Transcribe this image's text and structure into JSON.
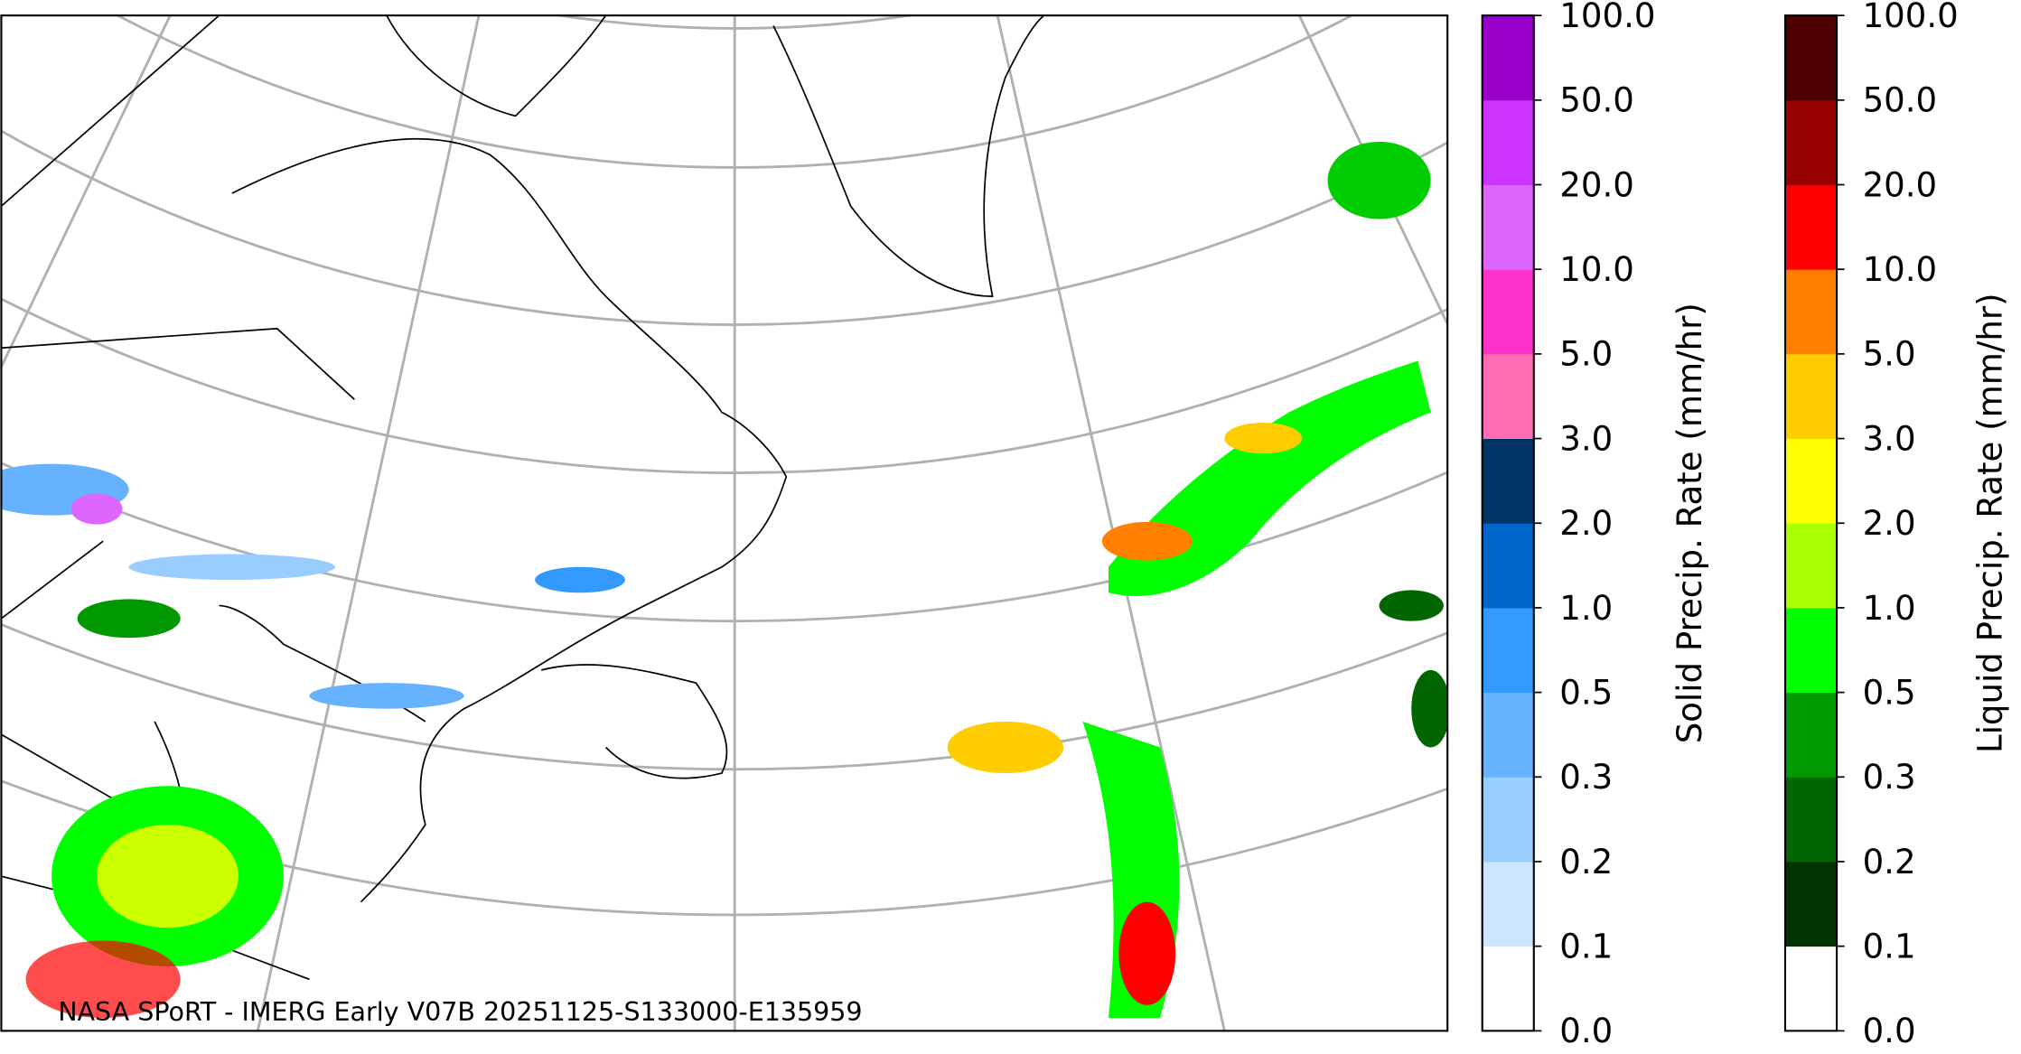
{
  "map": {
    "credit": "NASA SPoRT - IMERG Early V07B 20251125-S133000-E135959"
  },
  "colorbars": [
    {
      "label": "Solid Precip. Rate (mm/hr)",
      "ticks": [
        "0.0",
        "0.1",
        "0.2",
        "0.3",
        "0.5",
        "1.0",
        "2.0",
        "3.0",
        "5.0",
        "10.0",
        "20.0",
        "50.0",
        "100.0"
      ],
      "colors": [
        "#ffffff",
        "#cce5ff",
        "#99ccff",
        "#66b2ff",
        "#3399ff",
        "#0066cc",
        "#003366",
        "#ff6eb4",
        "#ff33cc",
        "#dd66ff",
        "#cc33ff",
        "#9900cc"
      ]
    },
    {
      "label": "Liquid Precip. Rate (mm/hr)",
      "ticks": [
        "0.0",
        "0.1",
        "0.2",
        "0.3",
        "0.5",
        "1.0",
        "2.0",
        "3.0",
        "5.0",
        "10.0",
        "20.0",
        "50.0",
        "100.0"
      ],
      "colors": [
        "#ffffff",
        "#003300",
        "#006600",
        "#009900",
        "#00ff00",
        "#aaff00",
        "#ffff00",
        "#ffcc00",
        "#ff8000",
        "#ff0000",
        "#990000",
        "#4d0000"
      ]
    }
  ]
}
